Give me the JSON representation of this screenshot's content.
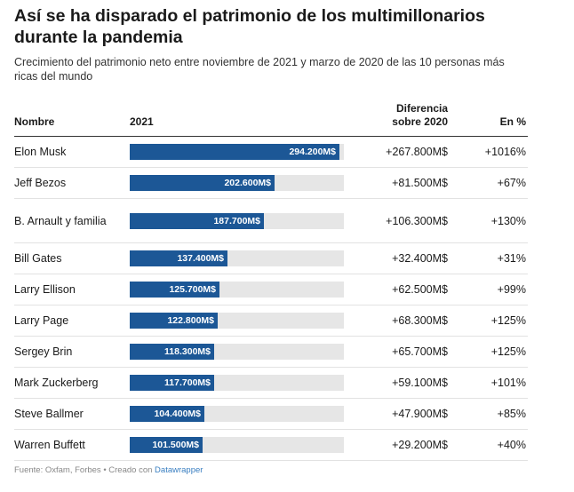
{
  "title": "Así se ha disparado el patrimonio de los multimillonarios durante la pandemia",
  "subtitle": "Crecimiento del patrimonio neto entre noviembre de 2021 y marzo de 2020 de las 10 personas más ricas del mundo",
  "columns": {
    "name": "Nombre",
    "year": "2021",
    "diff": "Diferencia sobre 2020",
    "pct": "En %"
  },
  "footer": {
    "source": "Fuente: Oxfam, Forbes • Creado con ",
    "link": "Datawrapper"
  },
  "colors": {
    "bar": "#1c5796",
    "track": "#e6e6e6"
  },
  "chart_data": {
    "type": "table",
    "bar_max": 300000,
    "rows": [
      {
        "name": "Elon Musk",
        "value": 294200,
        "value_label": "294.200M$",
        "diff": "+267.800M$",
        "pct": "+1016%"
      },
      {
        "name": "Jeff Bezos",
        "value": 202600,
        "value_label": "202.600M$",
        "diff": "+81.500M$",
        "pct": "+67%"
      },
      {
        "name": "B. Arnault y familia",
        "value": 187700,
        "value_label": "187.700M$",
        "diff": "+106.300M$",
        "pct": "+130%"
      },
      {
        "name": "Bill Gates",
        "value": 137400,
        "value_label": "137.400M$",
        "diff": "+32.400M$",
        "pct": "+31%"
      },
      {
        "name": "Larry Ellison",
        "value": 125700,
        "value_label": "125.700M$",
        "diff": "+62.500M$",
        "pct": "+99%"
      },
      {
        "name": "Larry Page",
        "value": 122800,
        "value_label": "122.800M$",
        "diff": "+68.300M$",
        "pct": "+125%"
      },
      {
        "name": "Sergey Brin",
        "value": 118300,
        "value_label": "118.300M$",
        "diff": "+65.700M$",
        "pct": "+125%"
      },
      {
        "name": "Mark Zuckerberg",
        "value": 117700,
        "value_label": "117.700M$",
        "diff": "+59.100M$",
        "pct": "+101%"
      },
      {
        "name": "Steve Ballmer",
        "value": 104400,
        "value_label": "104.400M$",
        "diff": "+47.900M$",
        "pct": "+85%"
      },
      {
        "name": "Warren Buffett",
        "value": 101500,
        "value_label": "101.500M$",
        "diff": "+29.200M$",
        "pct": "+40%"
      }
    ]
  }
}
